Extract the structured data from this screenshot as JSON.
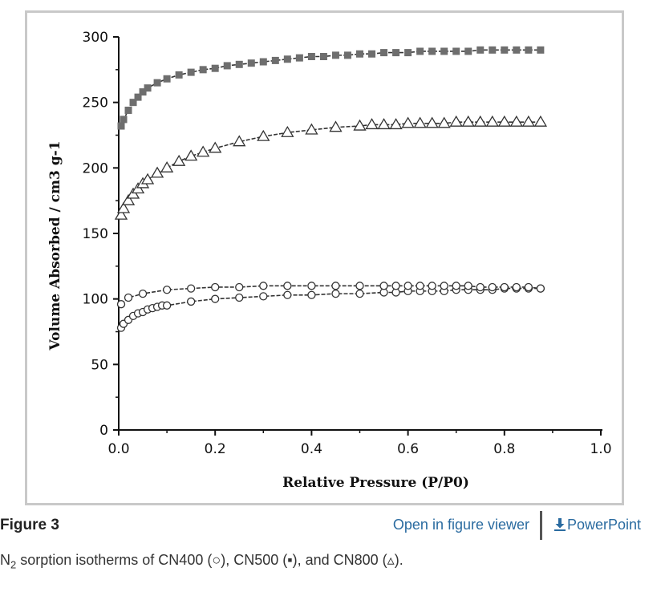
{
  "figure": {
    "label": "Figure 3",
    "viewer_link": "Open in figure viewer",
    "ppt_link": "PowerPoint",
    "caption": {
      "n": "N",
      "sub": "2",
      "rest": " sorption isotherms of CN400 (○), CN500 (▪), and CN800 (▵)."
    }
  },
  "chart_data": {
    "type": "scatter",
    "xlabel": "Relative Pressure (P/P0)",
    "ylabel": "Volume Absorbed / cm3 g-1",
    "xlim": [
      0.0,
      1.0
    ],
    "ylim": [
      0,
      300
    ],
    "xticks": [
      "0.0",
      "0.2",
      "0.4",
      "0.6",
      "0.8",
      "1.0"
    ],
    "yticks": [
      "0",
      "50",
      "100",
      "150",
      "200",
      "250",
      "300"
    ],
    "grid": false,
    "colors": {
      "cn500": "#6e6e6e",
      "cn800": "#ffffff",
      "cn400": "#ffffff",
      "stroke": "#333333"
    },
    "series": [
      {
        "marker": "square",
        "points": [
          [
            0.005,
            232
          ],
          [
            0.01,
            237
          ],
          [
            0.02,
            244
          ],
          [
            0.03,
            250
          ],
          [
            0.04,
            254
          ],
          [
            0.05,
            258
          ],
          [
            0.06,
            261
          ],
          [
            0.08,
            265
          ],
          [
            0.1,
            268
          ],
          [
            0.125,
            271
          ],
          [
            0.15,
            273
          ],
          [
            0.175,
            275
          ],
          [
            0.2,
            276
          ],
          [
            0.225,
            278
          ],
          [
            0.25,
            279
          ],
          [
            0.275,
            280
          ],
          [
            0.3,
            281
          ],
          [
            0.325,
            282
          ],
          [
            0.35,
            283
          ],
          [
            0.375,
            284
          ],
          [
            0.4,
            285
          ],
          [
            0.425,
            285
          ],
          [
            0.45,
            286
          ],
          [
            0.475,
            286
          ],
          [
            0.5,
            287
          ],
          [
            0.525,
            287
          ],
          [
            0.55,
            288
          ],
          [
            0.575,
            288
          ],
          [
            0.6,
            288
          ],
          [
            0.625,
            289
          ],
          [
            0.65,
            289
          ],
          [
            0.675,
            289
          ],
          [
            0.7,
            289
          ],
          [
            0.725,
            289
          ],
          [
            0.75,
            290
          ],
          [
            0.775,
            290
          ],
          [
            0.8,
            290
          ],
          [
            0.825,
            290
          ],
          [
            0.85,
            290
          ],
          [
            0.875,
            290
          ]
        ]
      },
      {
        "marker": "triangle",
        "points": [
          [
            0.005,
            164
          ],
          [
            0.01,
            169
          ],
          [
            0.02,
            175
          ],
          [
            0.03,
            180
          ],
          [
            0.04,
            184
          ],
          [
            0.05,
            188
          ],
          [
            0.06,
            191
          ],
          [
            0.08,
            196
          ],
          [
            0.1,
            200
          ],
          [
            0.125,
            205
          ],
          [
            0.15,
            209
          ],
          [
            0.175,
            212
          ],
          [
            0.2,
            215
          ],
          [
            0.25,
            220
          ],
          [
            0.3,
            224
          ],
          [
            0.35,
            227
          ],
          [
            0.4,
            229
          ],
          [
            0.45,
            231
          ],
          [
            0.5,
            232
          ],
          [
            0.525,
            233
          ],
          [
            0.55,
            233
          ],
          [
            0.575,
            233
          ],
          [
            0.6,
            234
          ],
          [
            0.625,
            234
          ],
          [
            0.65,
            234
          ],
          [
            0.675,
            234
          ],
          [
            0.7,
            235
          ],
          [
            0.725,
            235
          ],
          [
            0.75,
            235
          ],
          [
            0.775,
            235
          ],
          [
            0.8,
            235
          ],
          [
            0.825,
            235
          ],
          [
            0.85,
            235
          ],
          [
            0.875,
            235
          ]
        ]
      },
      {
        "marker": "circle",
        "points": [
          [
            0.005,
            78
          ],
          [
            0.01,
            81
          ],
          [
            0.02,
            84
          ],
          [
            0.03,
            87
          ],
          [
            0.04,
            89
          ],
          [
            0.05,
            90
          ],
          [
            0.06,
            92
          ],
          [
            0.07,
            93
          ],
          [
            0.08,
            94
          ],
          [
            0.09,
            95
          ],
          [
            0.1,
            95
          ],
          [
            0.15,
            98
          ],
          [
            0.2,
            100
          ],
          [
            0.25,
            101
          ],
          [
            0.3,
            102
          ],
          [
            0.35,
            103
          ],
          [
            0.4,
            103
          ],
          [
            0.45,
            104
          ],
          [
            0.5,
            104
          ],
          [
            0.55,
            105
          ],
          [
            0.575,
            105
          ],
          [
            0.6,
            106
          ],
          [
            0.625,
            106
          ],
          [
            0.65,
            106
          ],
          [
            0.675,
            106
          ],
          [
            0.7,
            107
          ],
          [
            0.725,
            107
          ],
          [
            0.75,
            107
          ],
          [
            0.775,
            107
          ],
          [
            0.8,
            108
          ],
          [
            0.825,
            108
          ],
          [
            0.85,
            108
          ],
          [
            0.875,
            108
          ]
        ]
      },
      {
        "marker": "circle",
        "points": [
          [
            0.005,
            96
          ],
          [
            0.02,
            101
          ],
          [
            0.05,
            104
          ],
          [
            0.1,
            107
          ],
          [
            0.15,
            108
          ],
          [
            0.2,
            109
          ],
          [
            0.25,
            109
          ],
          [
            0.3,
            110
          ],
          [
            0.35,
            110
          ],
          [
            0.4,
            110
          ],
          [
            0.45,
            110
          ],
          [
            0.5,
            110
          ],
          [
            0.55,
            110
          ],
          [
            0.575,
            110
          ],
          [
            0.6,
            110
          ],
          [
            0.625,
            110
          ],
          [
            0.65,
            110
          ],
          [
            0.675,
            110
          ],
          [
            0.7,
            110
          ],
          [
            0.725,
            110
          ],
          [
            0.75,
            109
          ],
          [
            0.775,
            109
          ],
          [
            0.8,
            109
          ],
          [
            0.825,
            109
          ],
          [
            0.85,
            109
          ],
          [
            0.875,
            108
          ]
        ]
      }
    ]
  }
}
